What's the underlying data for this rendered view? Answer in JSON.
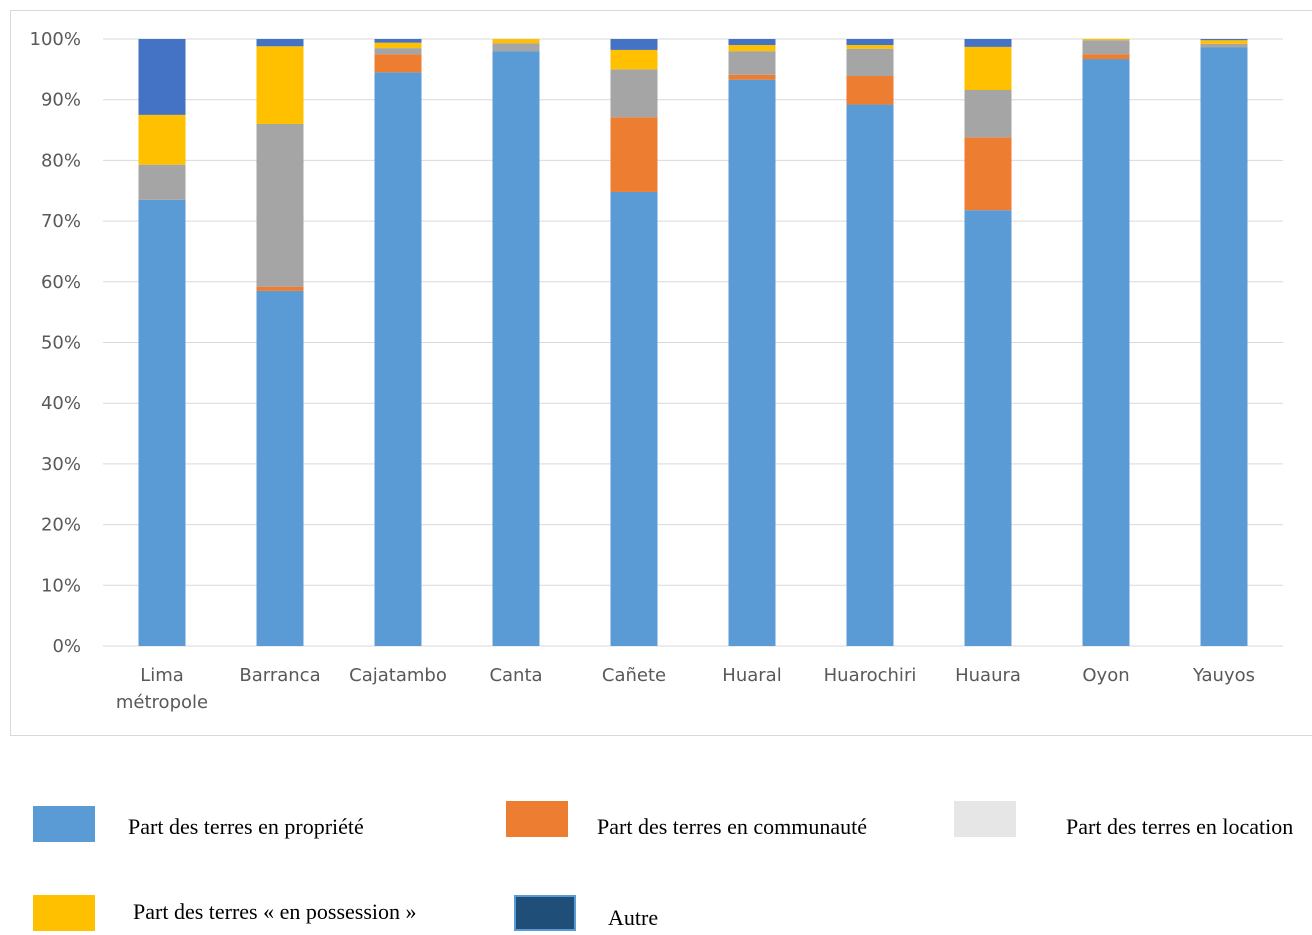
{
  "chart_data": {
    "type": "bar",
    "stacked": true,
    "normalized": true,
    "categories": [
      [
        "Lima",
        "métropole"
      ],
      [
        "Barranca"
      ],
      [
        "Cajatambo"
      ],
      [
        "Canta"
      ],
      [
        "Cañete"
      ],
      [
        "Huaral"
      ],
      [
        "Huarochiri"
      ],
      [
        "Huaura"
      ],
      [
        "Oyon"
      ],
      [
        "Yauyos"
      ]
    ],
    "y_ticks": [
      "0%",
      "10%",
      "20%",
      "30%",
      "40%",
      "50%",
      "60%",
      "70%",
      "80%",
      "90%",
      "100%"
    ],
    "ylim": [
      0,
      100
    ],
    "grid": true,
    "series": [
      {
        "name": "Part des terres en propriété",
        "color": "#5b9bd5",
        "values": [
          73.5,
          58.5,
          94.5,
          98.0,
          74.8,
          93.3,
          89.2,
          71.8,
          96.7,
          98.6
        ]
      },
      {
        "name": "Part des terres en communauté",
        "color": "#ed7d31",
        "values": [
          0.0,
          0.7,
          3.0,
          0.0,
          12.3,
          0.8,
          4.7,
          12.0,
          0.8,
          0.0
        ]
      },
      {
        "name": "Part des terres en location",
        "color": "#a5a5a5",
        "values": [
          5.8,
          26.8,
          1.0,
          1.3,
          7.9,
          3.9,
          4.5,
          7.8,
          2.3,
          0.6
        ]
      },
      {
        "name": "Part des terres « en possession »",
        "color": "#ffc000",
        "values": [
          8.2,
          12.8,
          0.9,
          0.7,
          3.2,
          1.0,
          0.6,
          7.1,
          0.2,
          0.6
        ]
      },
      {
        "name": "Autre",
        "color": "#4472c4",
        "values": [
          12.5,
          1.2,
          0.6,
          0.0,
          1.8,
          1.0,
          1.0,
          1.3,
          0.0,
          0.2
        ]
      }
    ]
  },
  "legend": {
    "items": [
      {
        "label": "Part des terres en propriété",
        "swatch_color": "#5b9bd5",
        "swatch_border": "#5b9bd5"
      },
      {
        "label": "Part des terres en communauté",
        "swatch_color": "#ed7d31",
        "swatch_border": "#ed7d31"
      },
      {
        "label": "Part des terres en location",
        "swatch_color": "#e7e6e6",
        "swatch_border": "#e7e6e6"
      },
      {
        "label": "Part des terres « en possession »",
        "swatch_color": "#ffc000",
        "swatch_border": "#ffc000"
      },
      {
        "label": "Autre",
        "swatch_color": "#1f4e79",
        "swatch_border": "#5b9bd5"
      }
    ]
  }
}
